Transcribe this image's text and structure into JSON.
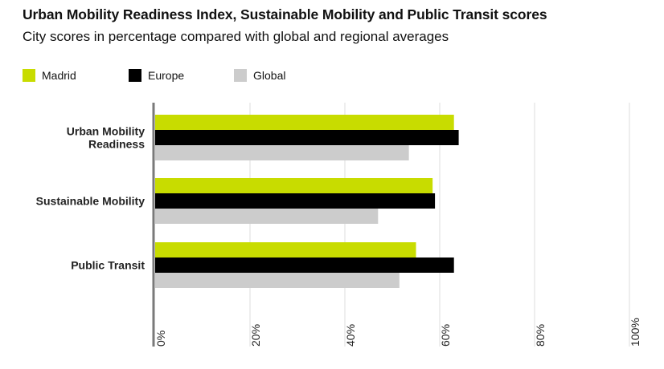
{
  "title": "Urban Mobility Readiness Index, Sustainable Mobility and Public Transit scores",
  "subtitle": "City scores in percentage compared with global and regional averages",
  "chart_data": {
    "type": "bar",
    "orientation": "horizontal",
    "categories": [
      [
        "Urban Mobility",
        "Readiness"
      ],
      [
        "Sustainable Mobility"
      ],
      [
        "Public Transit"
      ]
    ],
    "series": [
      {
        "name": "Madrid",
        "color": "#c8dc00",
        "values": [
          63,
          58.5,
          55
        ]
      },
      {
        "name": "Europe",
        "color": "#000000",
        "values": [
          64,
          59,
          63
        ]
      },
      {
        "name": "Global",
        "color": "#cccccc",
        "values": [
          53.5,
          47,
          51.5
        ]
      }
    ],
    "xlim": [
      0,
      100
    ],
    "xticks": [
      "0%",
      "20%",
      "40%",
      "60%",
      "80%",
      "100%"
    ],
    "tick_values": [
      0,
      20,
      40,
      60,
      80,
      100
    ],
    "grid": true,
    "legend_position": "top-left"
  }
}
